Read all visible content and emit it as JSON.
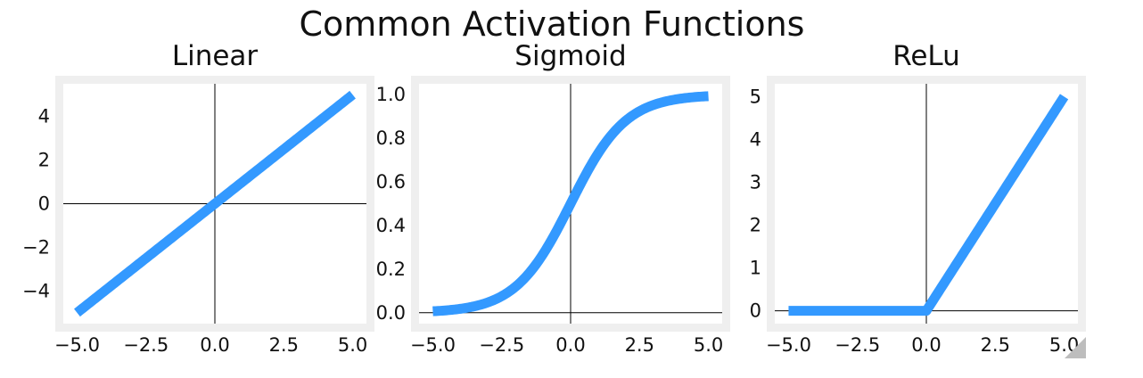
{
  "figure": {
    "title": "Common Activation Functions",
    "line_color": "#3399ff",
    "frame_color": "#efefef",
    "axis_line_color": "#000000"
  },
  "chart_data": [
    {
      "type": "line",
      "title": "Linear",
      "xlabel": "",
      "ylabel": "",
      "xlim": [
        -5.5,
        5.5
      ],
      "ylim": [
        -5.5,
        5.5
      ],
      "xticks": [
        -5,
        -2.5,
        0,
        2.5,
        5
      ],
      "xtick_labels": [
        "−5.0",
        "−2.5",
        "0.0",
        "2.5",
        "5.0"
      ],
      "yticks": [
        4,
        2,
        0,
        -2,
        -4
      ],
      "ytick_labels": [
        "4",
        "2",
        "0",
        "−2",
        "−4"
      ],
      "grid": false,
      "series": [
        {
          "function": "linear",
          "x": [
            -5,
            5
          ],
          "y": [
            -5,
            5
          ]
        }
      ]
    },
    {
      "type": "line",
      "title": "Sigmoid",
      "xlabel": "",
      "ylabel": "",
      "xlim": [
        -5.5,
        5.5
      ],
      "ylim": [
        -0.05,
        1.05
      ],
      "xticks": [
        -5,
        -2.5,
        0,
        2.5,
        5
      ],
      "xtick_labels": [
        "−5.0",
        "−2.5",
        "0.0",
        "2.5",
        "5.0"
      ],
      "yticks": [
        1.0,
        0.8,
        0.6,
        0.4,
        0.2,
        0.0
      ],
      "ytick_labels": [
        "1.0",
        "0.8",
        "0.6",
        "0.4",
        "0.2",
        "0.0"
      ],
      "grid": false,
      "series": [
        {
          "function": "sigmoid",
          "x": [
            -5,
            -4,
            -3,
            -2,
            -1,
            0,
            1,
            2,
            3,
            4,
            5
          ],
          "y": [
            0.007,
            0.018,
            0.047,
            0.119,
            0.269,
            0.5,
            0.731,
            0.881,
            0.953,
            0.982,
            0.993
          ]
        }
      ]
    },
    {
      "type": "line",
      "title": "ReLu",
      "xlabel": "",
      "ylabel": "",
      "xlim": [
        -5.5,
        5.5
      ],
      "ylim": [
        -0.3,
        5.3
      ],
      "xticks": [
        -5,
        -2.5,
        0,
        2.5,
        5
      ],
      "xtick_labels": [
        "−5.0",
        "−2.5",
        "0.0",
        "2.5",
        "5.0"
      ],
      "yticks": [
        5,
        4,
        3,
        2,
        1,
        0
      ],
      "ytick_labels": [
        "5",
        "4",
        "3",
        "2",
        "1",
        "0"
      ],
      "grid": false,
      "series": [
        {
          "function": "relu",
          "x": [
            -5,
            0,
            5
          ],
          "y": [
            0,
            0,
            5
          ]
        }
      ]
    }
  ]
}
